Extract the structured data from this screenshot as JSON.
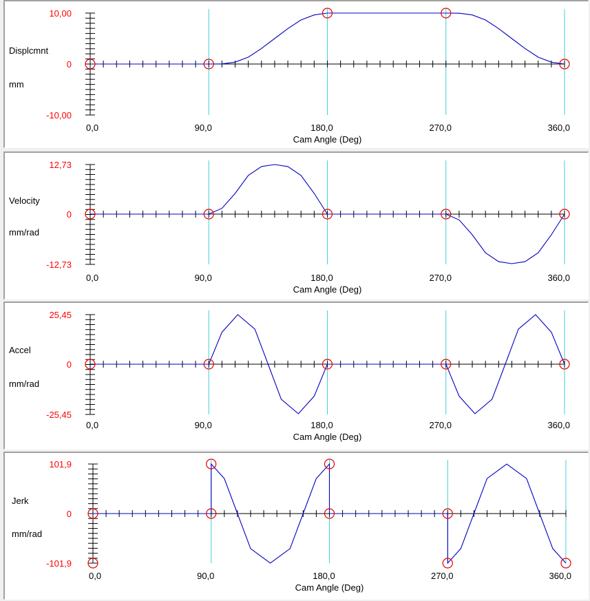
{
  "colors": {
    "curve": "#0000c0",
    "marker": "#e00000",
    "vline": "#40d0d8",
    "ytick": "#ff0000",
    "axis": "#000000"
  },
  "chart_data": [
    {
      "type": "line",
      "name_label": "Displcmnt",
      "unit_label": "mm",
      "xlabel": "Cam Angle (Deg)",
      "x_ticks": [
        "0,0",
        "90,0",
        "180,0",
        "270,0",
        "360,0"
      ],
      "y_ticks": [
        "10,00",
        "0",
        "-10,00"
      ],
      "xlim": [
        0,
        360
      ],
      "ylim": [
        -10,
        10
      ],
      "x": [
        0,
        90,
        100,
        110,
        120,
        130,
        140,
        150,
        160,
        170,
        180,
        270,
        280,
        290,
        300,
        310,
        320,
        330,
        340,
        350,
        360
      ],
      "values": [
        0,
        0,
        0.03,
        0.36,
        1.35,
        3.05,
        5.0,
        6.95,
        8.65,
        9.64,
        10,
        10,
        9.97,
        9.64,
        8.65,
        6.95,
        5.0,
        3.05,
        1.35,
        0.36,
        0
      ],
      "markers": [
        [
          0,
          0
        ],
        [
          90,
          0
        ],
        [
          180,
          10
        ],
        [
          270,
          10
        ],
        [
          360,
          0
        ]
      ],
      "vlines": [
        90,
        180,
        270,
        360
      ]
    },
    {
      "type": "line",
      "name_label": "Velocity",
      "unit_label": "mm/rad",
      "xlabel": "Cam Angle (Deg)",
      "x_ticks": [
        "0,0",
        "90,0",
        "180,0",
        "270,0",
        "360,0"
      ],
      "y_ticks": [
        "12,73",
        "0",
        "-12,73"
      ],
      "xlim": [
        0,
        360
      ],
      "ylim": [
        -12.73,
        12.73
      ],
      "x": [
        0,
        90,
        100,
        110,
        120,
        130,
        140,
        150,
        160,
        170,
        180,
        270,
        280,
        290,
        300,
        310,
        320,
        330,
        340,
        350,
        360
      ],
      "values": [
        0,
        0,
        1.49,
        5.3,
        9.94,
        12.21,
        12.73,
        12.21,
        9.94,
        5.3,
        0,
        0,
        -1.49,
        -5.3,
        -9.94,
        -12.21,
        -12.73,
        -12.21,
        -9.94,
        -5.3,
        0
      ],
      "markers": [
        [
          0,
          0
        ],
        [
          90,
          0
        ],
        [
          180,
          0
        ],
        [
          270,
          0
        ],
        [
          360,
          0
        ]
      ],
      "vlines": [
        90,
        180,
        270,
        360
      ]
    },
    {
      "type": "line",
      "name_label": "Accel",
      "unit_label": "mm/rad",
      "xlabel": "Cam Angle (Deg)",
      "x_ticks": [
        "0,0",
        "90,0",
        "180,0",
        "270,0",
        "360,0"
      ],
      "y_ticks": [
        "25,45",
        "0",
        "-25,45"
      ],
      "xlim": [
        0,
        360
      ],
      "ylim": [
        -25.45,
        25.45
      ],
      "x": [
        0,
        90,
        100,
        112,
        125,
        135,
        145,
        158,
        170,
        180,
        270,
        280,
        292,
        305,
        315,
        325,
        338,
        350,
        360
      ],
      "values": [
        0,
        0,
        16.4,
        25.45,
        18.0,
        0,
        -18.0,
        -25.45,
        -16.4,
        0,
        0,
        -16.4,
        -25.45,
        -18.0,
        0,
        18.0,
        25.45,
        16.4,
        0
      ],
      "markers": [
        [
          0,
          0
        ],
        [
          90,
          0
        ],
        [
          180,
          0
        ],
        [
          270,
          0
        ],
        [
          360,
          0
        ]
      ],
      "vlines": [
        90,
        180,
        270,
        360
      ]
    },
    {
      "type": "line",
      "name_label": "Jerk",
      "unit_label": "mm/rad",
      "xlabel": "Cam Angle (Deg)",
      "x_ticks": [
        "0,0",
        "90,0",
        "180,0",
        "270,0",
        "360,0"
      ],
      "y_ticks": [
        "101,9",
        "0",
        "-101,9"
      ],
      "xlim": [
        0,
        360
      ],
      "ylim": [
        -101.9,
        101.9
      ],
      "x": [
        0,
        90,
        90,
        100,
        110,
        120,
        135,
        150,
        160,
        170,
        180,
        180,
        270,
        270,
        280,
        290,
        300,
        315,
        330,
        340,
        350,
        360
      ],
      "values": [
        0,
        0,
        101.9,
        72,
        0,
        -72,
        -101.9,
        -72,
        0,
        72,
        101.9,
        0,
        0,
        -101.9,
        -72,
        0,
        72,
        101.9,
        72,
        0,
        -72,
        -101.9
      ],
      "markers": [
        [
          0,
          0
        ],
        [
          0,
          -101.9
        ],
        [
          90,
          0
        ],
        [
          90,
          101.9
        ],
        [
          180,
          0
        ],
        [
          180,
          101.9
        ],
        [
          270,
          0
        ],
        [
          270,
          -101.9
        ],
        [
          360,
          -101.9
        ]
      ],
      "vlines": [
        90,
        180,
        270,
        360
      ]
    }
  ]
}
